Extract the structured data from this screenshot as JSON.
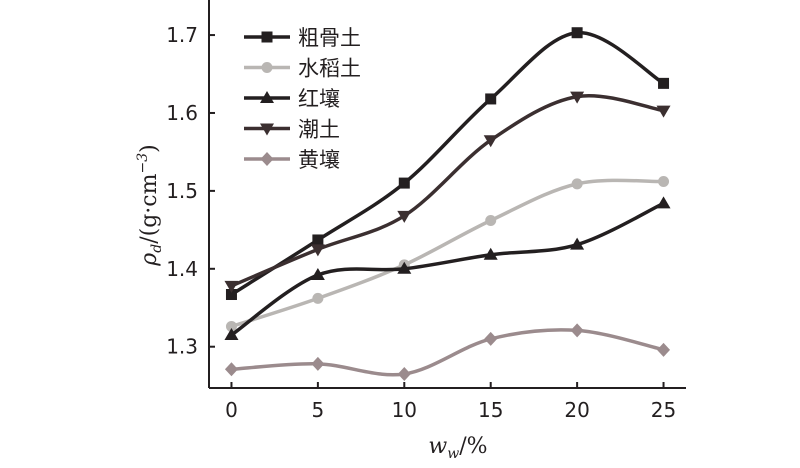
{
  "chart_data": {
    "type": "line",
    "title": "",
    "x": [
      0,
      5,
      10,
      15,
      20,
      25
    ],
    "x_ticks": [
      "0",
      "5",
      "10",
      "15",
      "20",
      "25"
    ],
    "y_ticks": [
      "1.3",
      "1.4",
      "1.5",
      "1.6",
      "1.7"
    ],
    "xlim": [
      -1.3,
      26.3
    ],
    "ylim": [
      1.247,
      1.745
    ],
    "ylabel": {
      "main": "ρ",
      "sub": "d",
      "rest": "/(g·cm",
      "sup": "−3",
      "close": ")"
    },
    "xlabel": {
      "main": "w",
      "sub": "w",
      "rest": "/%"
    },
    "legend_position": "top-left",
    "series": [
      {
        "name": "粗骨土",
        "color": "#231f20",
        "marker": "square",
        "values": [
          1.367,
          1.437,
          1.51,
          1.618,
          1.703,
          1.638
        ]
      },
      {
        "name": "水稻土",
        "color": "#b9b6b3",
        "marker": "circle",
        "values": [
          1.326,
          1.362,
          1.405,
          1.462,
          1.509,
          1.512
        ]
      },
      {
        "name": "红壤",
        "color": "#231f20",
        "marker": "triangle-up",
        "values": [
          1.315,
          1.392,
          1.4,
          1.418,
          1.431,
          1.484
        ]
      },
      {
        "name": "潮土",
        "color": "#3b2f30",
        "marker": "triangle-down",
        "values": [
          1.378,
          1.425,
          1.468,
          1.565,
          1.621,
          1.603
        ]
      },
      {
        "name": "黄壤",
        "color": "#9b8b8d",
        "marker": "diamond",
        "values": [
          1.271,
          1.278,
          1.265,
          1.31,
          1.321,
          1.296
        ]
      }
    ]
  }
}
